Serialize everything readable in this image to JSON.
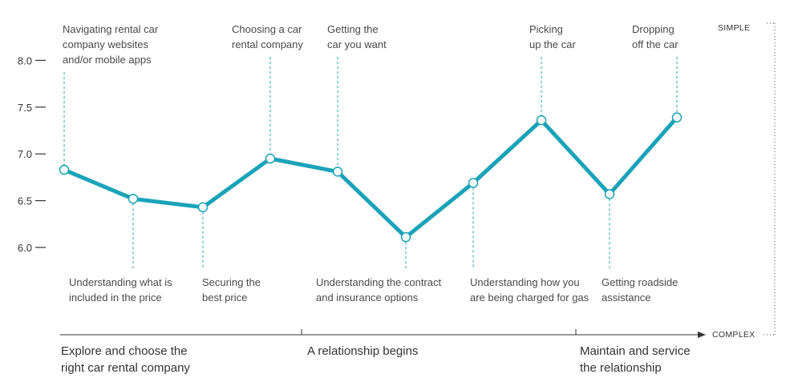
{
  "chart_data": {
    "type": "line",
    "title": "",
    "ylim": [
      5.7,
      8.3
    ],
    "yticks": [
      "8.0",
      "7.5",
      "7.0",
      "6.5",
      "6.0"
    ],
    "ytick_values": [
      8.0,
      7.5,
      7.0,
      6.5,
      6.0
    ],
    "grid": false,
    "color": "#1aa3b8",
    "axis_words": {
      "top": "SIMPLE",
      "right": "COMPLEX"
    },
    "points": [
      {
        "label": [
          "Navigating rental car",
          "company websites",
          "and/or mobile apps"
        ],
        "value": 6.83,
        "label_pos": "top"
      },
      {
        "label": [
          "Understanding what is",
          "included in the price"
        ],
        "value": 6.52,
        "label_pos": "bottom"
      },
      {
        "label": [
          "Securing the",
          "best price"
        ],
        "value": 6.43,
        "label_pos": "bottom"
      },
      {
        "label": [
          "Choosing a car",
          "rental company"
        ],
        "value": 6.95,
        "label_pos": "top"
      },
      {
        "label": [
          "Getting the",
          "car you want"
        ],
        "value": 6.81,
        "label_pos": "top"
      },
      {
        "label": [
          "Understanding the contract",
          "and insurance options"
        ],
        "value": 6.11,
        "label_pos": "bottom"
      },
      {
        "label": [
          "Understanding how you",
          "are being charged for gas"
        ],
        "value": 6.69,
        "label_pos": "bottom"
      },
      {
        "label": [
          "Picking",
          "up the car"
        ],
        "value": 7.36,
        "label_pos": "top"
      },
      {
        "label": [
          "Getting roadside",
          "assistance"
        ],
        "value": 6.57,
        "label_pos": "bottom"
      },
      {
        "label": [
          "Dropping",
          "off the car"
        ],
        "value": 7.39,
        "label_pos": "top"
      }
    ],
    "phases": [
      {
        "label": [
          "Explore and choose the",
          "right car rental company"
        ]
      },
      {
        "label": [
          "A relationship begins"
        ]
      },
      {
        "label": [
          "Maintain and service",
          "the relationship"
        ]
      }
    ]
  }
}
